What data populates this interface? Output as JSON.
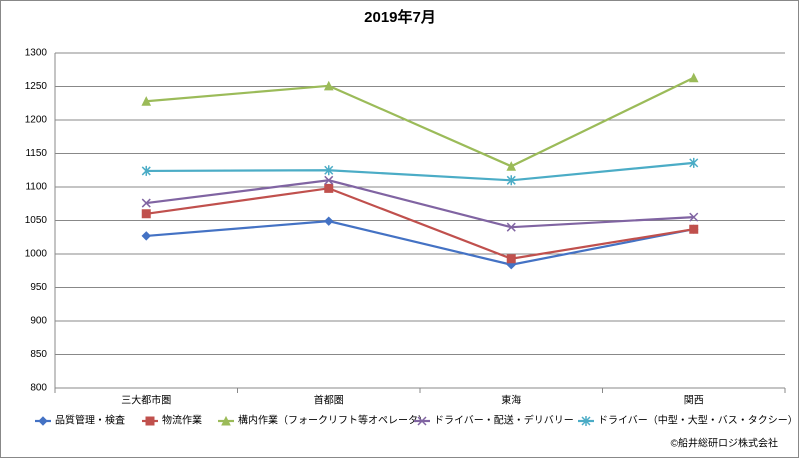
{
  "chart_data": {
    "type": "line",
    "title": "2019年7月",
    "footnote": "©船井総研ロジ株式会社",
    "categories": [
      "三大都市圏",
      "首都圏",
      "東海",
      "関西"
    ],
    "ylim": [
      800,
      1300
    ],
    "yticks": [
      800,
      850,
      900,
      950,
      1000,
      1050,
      1100,
      1150,
      1200,
      1250,
      1300
    ],
    "grid": true,
    "legend": "bottom",
    "series": [
      {
        "name": "品質管理・検査",
        "color": "#4472c4",
        "marker": "diamond",
        "values": [
          1027,
          1049,
          984,
          1037
        ]
      },
      {
        "name": "物流作業",
        "color": "#c0504d",
        "marker": "square",
        "values": [
          1060,
          1098,
          993,
          1037
        ]
      },
      {
        "name": "構内作業（フォークリフト等オペレータ）",
        "color": "#9bbb59",
        "marker": "triangle",
        "values": [
          1228,
          1251,
          1131,
          1263
        ]
      },
      {
        "name": "ドライバー・配送・デリバリー",
        "color": "#8064a2",
        "marker": "x",
        "values": [
          1076,
          1110,
          1040,
          1055
        ]
      },
      {
        "name": "ドライバー（中型・大型・バス・タクシー）",
        "color": "#4bacc6",
        "marker": "star",
        "values": [
          1124,
          1125,
          1110,
          1136
        ]
      }
    ]
  }
}
